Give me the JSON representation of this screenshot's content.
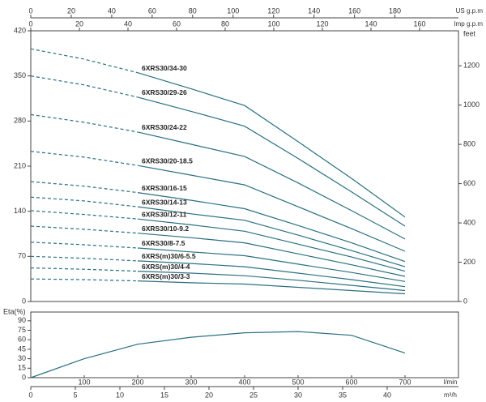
{
  "chart_data": [
    {
      "type": "line",
      "x": [
        0,
        100,
        200,
        300,
        400,
        500,
        600,
        700
      ],
      "xlim": [
        0,
        800
      ],
      "dashed_below_x": 200,
      "color": "#2b7080",
      "series": [
        {
          "name": "6XRS30/34-30",
          "values": [
            392,
            376,
            355,
            330,
            304,
            248,
            191,
            131
          ]
        },
        {
          "name": "6XRS30/29-26",
          "values": [
            350,
            336,
            317,
            295,
            272,
            222,
            170,
            117
          ]
        },
        {
          "name": "6XRS30/24-22",
          "values": [
            290,
            278,
            263,
            244,
            225,
            184,
            141,
            97
          ]
        },
        {
          "name": "6XRS30/20-18.5",
          "values": [
            233,
            224,
            211,
            196,
            181,
            147,
            113,
            78
          ]
        },
        {
          "name": "6XRS30/16-15",
          "values": [
            186,
            179,
            169,
            157,
            144,
            118,
            91,
            62
          ]
        },
        {
          "name": "6XRS30/14-13",
          "values": [
            162,
            156,
            147,
            136,
            126,
            103,
            79,
            54
          ]
        },
        {
          "name": "6XRS30/12-11",
          "values": [
            141,
            135,
            128,
            119,
            109,
            89,
            69,
            47
          ]
        },
        {
          "name": "6XRS30/10-9.2",
          "values": [
            117,
            112,
            106,
            99,
            91,
            74,
            57,
            39
          ]
        },
        {
          "name": "6XRS30/8-7.5",
          "values": [
            92,
            88,
            83,
            77,
            71,
            58,
            45,
            31
          ]
        },
        {
          "name": "6XRS(m)30/6-5.5",
          "values": [
            70,
            67,
            63,
            59,
            54,
            44,
            34,
            23
          ]
        },
        {
          "name": "6XRS(m)30/4-4",
          "values": [
            52,
            50,
            47,
            44,
            40,
            33,
            25,
            17
          ]
        },
        {
          "name": "6XRS(m)30/3-3",
          "values": [
            35,
            34,
            32,
            29,
            27,
            22,
            17,
            12
          ]
        }
      ],
      "ylim": [
        0,
        420
      ],
      "yticks": [
        0,
        70,
        140,
        210,
        280,
        350,
        420
      ],
      "y2label": "feet",
      "y2lim": [
        0,
        1378
      ],
      "y2ticks": [
        0,
        200,
        400,
        600,
        800,
        1000,
        1200
      ],
      "top_axes": [
        {
          "label": "US g.p.m",
          "xlim": [
            0,
            211.4
          ],
          "xticks": [
            0,
            20,
            40,
            60,
            80,
            100,
            120,
            140,
            160,
            180
          ]
        },
        {
          "label": "Imp g.p.m",
          "xlim": [
            0,
            176
          ],
          "xticks": [
            0,
            20,
            40,
            60,
            80,
            100,
            120,
            140,
            160
          ]
        }
      ]
    },
    {
      "type": "line",
      "ylabel": "Eta(%)",
      "x": [
        0,
        100,
        200,
        300,
        400,
        500,
        600,
        700
      ],
      "xlim": [
        0,
        800
      ],
      "color": "#2b7080",
      "values": [
        0,
        30,
        53,
        64,
        71,
        73,
        67,
        39
      ],
      "ylim": [
        0,
        100
      ],
      "yticks": [
        0,
        15,
        30,
        45,
        60,
        75,
        90
      ],
      "xlabel": "l/min",
      "xticks": [
        100,
        200,
        300,
        400,
        500,
        600,
        700
      ],
      "bottom_axis": {
        "label": "m³/h",
        "xlim": [
          0,
          48
        ],
        "xticks": [
          0,
          5,
          10,
          15,
          20,
          25,
          30,
          35,
          40
        ]
      }
    }
  ]
}
